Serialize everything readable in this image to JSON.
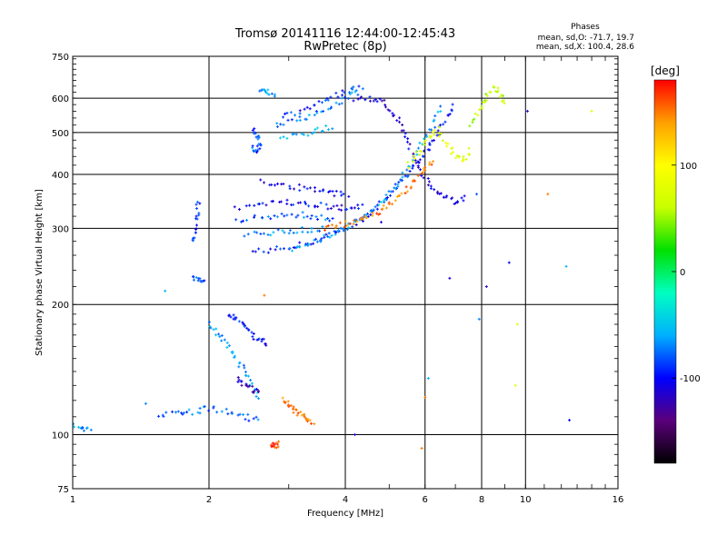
{
  "chart_data": {
    "type": "scatter",
    "title": "Tromsø 20141116 12:44:00-12:45:43",
    "subtitle": "RwPretec (8p)",
    "stats_title": "Phases",
    "stats_line1": "mean, sd,O: -71.7, 19.7",
    "stats_line2": "mean, sd,X: 100.4, 28.6",
    "xlabel": "Frequency [MHz]",
    "ylabel": "Stationary phase Virtual Height [km]",
    "x_scale": "log",
    "y_scale": "log",
    "xlim": [
      1,
      16
    ],
    "ylim": [
      75,
      750
    ],
    "x_ticks": [
      1,
      2,
      4,
      6,
      8,
      10,
      16
    ],
    "x_tick_labels": [
      "1",
      "2",
      "4",
      "6",
      "8",
      "10",
      "16"
    ],
    "y_ticks": [
      75,
      100,
      200,
      300,
      400,
      500,
      600,
      750
    ],
    "y_tick_labels": [
      "75",
      "100",
      "200",
      "300",
      "400",
      "500",
      "600",
      "750"
    ],
    "grid": true,
    "colorbar": {
      "label": "[deg]",
      "range": [
        -180,
        180
      ],
      "ticks": [
        100,
        0,
        -100
      ],
      "tick_labels": [
        "100",
        "0",
        "-100"
      ],
      "colors": [
        "#000000",
        "#5a007a",
        "#0000ff",
        "#00b0ff",
        "#00ffc0",
        "#00e000",
        "#c8ff00",
        "#ffff00",
        "#ffa000",
        "#ff0000"
      ]
    },
    "traces": [
      {
        "name": "",
        "color_phase": -95,
        "points": [
          [
            2.5,
            265
          ],
          [
            2.8,
            268
          ],
          [
            3.1,
            272
          ],
          [
            3.4,
            280
          ],
          [
            3.7,
            290
          ],
          [
            4.0,
            300
          ],
          [
            4.3,
            312
          ],
          [
            4.6,
            330
          ],
          [
            4.9,
            350
          ],
          [
            5.2,
            375
          ],
          [
            5.5,
            400
          ],
          [
            5.8,
            430
          ],
          [
            6.1,
            460
          ],
          [
            6.4,
            500
          ],
          [
            6.7,
            540
          ],
          [
            7.0,
            580
          ]
        ]
      },
      {
        "name": "",
        "color_phase": -60,
        "points": [
          [
            3.0,
            268
          ],
          [
            3.3,
            275
          ],
          [
            3.6,
            285
          ],
          [
            3.9,
            297
          ],
          [
            4.2,
            310
          ],
          [
            4.5,
            325
          ],
          [
            4.8,
            345
          ],
          [
            5.1,
            370
          ],
          [
            5.4,
            400
          ],
          [
            5.7,
            440
          ],
          [
            6.0,
            480
          ],
          [
            6.3,
            530
          ],
          [
            6.5,
            580
          ]
        ]
      },
      {
        "name": "",
        "color_phase": -110,
        "points": [
          [
            4.2,
            595
          ],
          [
            4.5,
            600
          ],
          [
            4.8,
            590
          ],
          [
            5.1,
            560
          ],
          [
            5.3,
            520
          ],
          [
            5.5,
            470
          ],
          [
            5.7,
            430
          ],
          [
            6.0,
            395
          ],
          [
            6.3,
            370
          ],
          [
            6.6,
            355
          ],
          [
            7.0,
            345
          ],
          [
            7.4,
            355
          ]
        ]
      },
      {
        "name": "",
        "color_phase": 150,
        "points": [
          [
            3.6,
            300
          ],
          [
            3.9,
            305
          ],
          [
            4.2,
            312
          ],
          [
            4.5,
            320
          ],
          [
            4.8,
            330
          ],
          [
            5.1,
            345
          ],
          [
            5.4,
            362
          ],
          [
            5.7,
            385
          ],
          [
            6.0,
            410
          ],
          [
            6.3,
            440
          ]
        ]
      },
      {
        "name": "",
        "color_phase": 80,
        "points": [
          [
            5.5,
            420
          ],
          [
            5.8,
            450
          ],
          [
            6.1,
            480
          ],
          [
            6.4,
            510
          ],
          [
            6.7,
            470
          ],
          [
            7.0,
            440
          ],
          [
            7.3,
            430
          ],
          [
            7.6,
            460
          ]
        ]
      },
      {
        "name": "",
        "color_phase": 60,
        "points": [
          [
            7.6,
            520
          ],
          [
            7.9,
            560
          ],
          [
            8.2,
            600
          ],
          [
            8.5,
            640
          ],
          [
            8.8,
            610
          ],
          [
            9.0,
            580
          ]
        ]
      },
      {
        "name": "",
        "color_phase": -100,
        "points": [
          [
            2.3,
            335
          ],
          [
            2.6,
            340
          ],
          [
            2.9,
            345
          ],
          [
            3.2,
            345
          ],
          [
            3.5,
            340
          ],
          [
            3.8,
            335
          ],
          [
            4.1,
            335
          ],
          [
            4.4,
            340
          ]
        ]
      },
      {
        "name": "",
        "color_phase": -80,
        "points": [
          [
            2.3,
            310
          ],
          [
            2.6,
            318
          ],
          [
            2.9,
            322
          ],
          [
            3.2,
            322
          ],
          [
            3.5,
            318
          ],
          [
            3.8,
            315
          ]
        ]
      },
      {
        "name": "",
        "color_phase": -70,
        "points": [
          [
            2.4,
            290
          ],
          [
            2.7,
            292
          ],
          [
            3.0,
            295
          ],
          [
            3.3,
            298
          ],
          [
            3.6,
            300
          ]
        ]
      },
      {
        "name": "",
        "color_phase": -105,
        "points": [
          [
            2.6,
            385
          ],
          [
            2.9,
            380
          ],
          [
            3.2,
            372
          ],
          [
            3.5,
            365
          ],
          [
            3.8,
            362
          ],
          [
            4.1,
            360
          ]
        ]
      },
      {
        "name": "",
        "color_phase": -90,
        "points": [
          [
            2.9,
            545
          ],
          [
            3.2,
            560
          ],
          [
            3.5,
            585
          ],
          [
            3.8,
            610
          ],
          [
            4.1,
            625
          ],
          [
            4.4,
            640
          ]
        ]
      },
      {
        "name": "",
        "color_phase": -75,
        "points": [
          [
            2.8,
            520
          ],
          [
            3.1,
            530
          ],
          [
            3.4,
            550
          ],
          [
            3.7,
            575
          ],
          [
            4.0,
            600
          ],
          [
            4.3,
            620
          ]
        ]
      },
      {
        "name": "",
        "color_phase": -55,
        "points": [
          [
            2.9,
            490
          ],
          [
            3.2,
            495
          ],
          [
            3.5,
            505
          ],
          [
            3.8,
            520
          ]
        ]
      },
      {
        "name": "",
        "color_phase": -85,
        "points": [
          [
            2.5,
            510
          ],
          [
            2.55,
            490
          ],
          [
            2.6,
            470
          ],
          [
            2.55,
            455
          ],
          [
            2.5,
            460
          ]
        ]
      },
      {
        "name": "",
        "color_phase": -60,
        "points": [
          [
            2.6,
            625
          ],
          [
            2.7,
            620
          ],
          [
            2.8,
            612
          ]
        ]
      },
      {
        "name": "",
        "color_phase": -90,
        "points": [
          [
            1.9,
            350
          ],
          [
            1.88,
            320
          ],
          [
            1.86,
            295
          ],
          [
            1.85,
            275
          ]
        ]
      },
      {
        "name": "",
        "color_phase": -85,
        "points": [
          [
            1.85,
            230
          ],
          [
            1.9,
            228
          ],
          [
            1.95,
            226
          ]
        ]
      },
      {
        "name": "",
        "color_phase": -75,
        "points": [
          [
            1.55,
            110
          ],
          [
            1.7,
            112
          ],
          [
            1.85,
            113
          ],
          [
            2.0,
            115
          ],
          [
            2.2,
            113
          ],
          [
            2.4,
            110
          ],
          [
            2.6,
            108
          ]
        ]
      },
      {
        "name": "",
        "color_phase": -65,
        "points": [
          [
            2.0,
            180
          ],
          [
            2.1,
            170
          ],
          [
            2.2,
            160
          ],
          [
            2.3,
            150
          ],
          [
            2.4,
            140
          ],
          [
            2.5,
            130
          ],
          [
            2.6,
            120
          ]
        ]
      },
      {
        "name": "",
        "color_phase": -95,
        "points": [
          [
            2.2,
            190
          ],
          [
            2.3,
            185
          ],
          [
            2.4,
            178
          ],
          [
            2.5,
            170
          ],
          [
            2.6,
            165
          ],
          [
            2.7,
            160
          ]
        ]
      },
      {
        "name": "",
        "color_phase": -120,
        "points": [
          [
            2.3,
            135
          ],
          [
            2.4,
            130
          ],
          [
            2.5,
            127
          ],
          [
            2.6,
            125
          ]
        ]
      },
      {
        "name": "",
        "color_phase": 150,
        "points": [
          [
            2.9,
            120
          ],
          [
            3.0,
            117
          ],
          [
            3.1,
            114
          ],
          [
            3.2,
            111
          ],
          [
            3.3,
            108
          ],
          [
            3.4,
            106
          ]
        ]
      },
      {
        "name": "",
        "color_phase": 170,
        "points": [
          [
            2.75,
            95
          ],
          [
            2.8,
            94
          ],
          [
            2.85,
            96
          ]
        ]
      },
      {
        "name": "",
        "color_phase": -70,
        "points": [
          [
            1.0,
            105
          ],
          [
            1.05,
            104
          ],
          [
            1.1,
            103
          ]
        ]
      }
    ],
    "scatter": [
      {
        "x": 6.8,
        "y": 230,
        "p": -110
      },
      {
        "x": 7.8,
        "y": 360,
        "p": -80
      },
      {
        "x": 9.2,
        "y": 250,
        "p": -100
      },
      {
        "x": 10.1,
        "y": 560,
        "p": -120
      },
      {
        "x": 11.2,
        "y": 360,
        "p": 150
      },
      {
        "x": 12.3,
        "y": 245,
        "p": -60
      },
      {
        "x": 14.0,
        "y": 560,
        "p": 80
      },
      {
        "x": 9.6,
        "y": 180,
        "p": 80
      },
      {
        "x": 9.5,
        "y": 130,
        "p": 80
      },
      {
        "x": 12.5,
        "y": 108,
        "p": -100
      },
      {
        "x": 6.1,
        "y": 135,
        "p": -60
      },
      {
        "x": 6.0,
        "y": 122,
        "p": 150
      },
      {
        "x": 5.9,
        "y": 93,
        "p": 150
      },
      {
        "x": 4.2,
        "y": 100,
        "p": -110
      },
      {
        "x": 4.8,
        "y": 310,
        "p": -110
      },
      {
        "x": 1.6,
        "y": 215,
        "p": -60
      },
      {
        "x": 1.45,
        "y": 118,
        "p": -70
      },
      {
        "x": 2.65,
        "y": 210,
        "p": 150
      },
      {
        "x": 7.9,
        "y": 185,
        "p": -70
      },
      {
        "x": 8.2,
        "y": 220,
        "p": -110
      }
    ]
  }
}
